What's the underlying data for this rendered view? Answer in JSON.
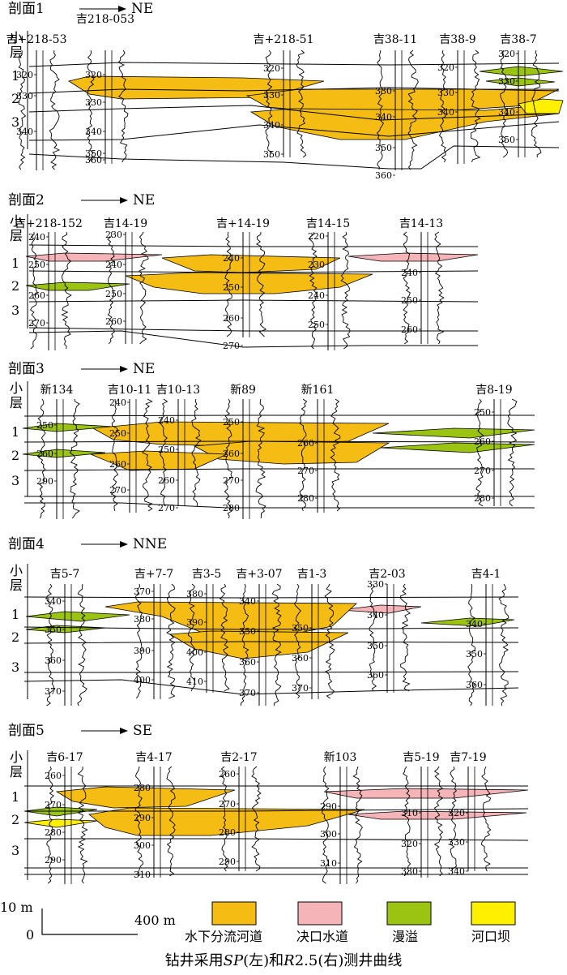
{
  "legend": {
    "scale_vertical": "10 m",
    "scale_zero": "0",
    "scale_horizontal": "400 m",
    "items": [
      {
        "key": "channel",
        "label": "水下分流河道",
        "color": "#F5BC14"
      },
      {
        "key": "crevasse",
        "label": "决口水道",
        "color": "#F4B4B8"
      },
      {
        "key": "overflow",
        "label": "漫溢",
        "color": "#9BC312"
      },
      {
        "key": "bar",
        "label": "河口坝",
        "color": "#FFF000"
      }
    ]
  },
  "caption": {
    "part1": "钻井采用",
    "sp": "SP",
    "part2": "(左)和",
    "r": "R",
    "part3": "2.5(右)测井曲线"
  },
  "layer_header": "小层",
  "sections": [
    {
      "title": "剖面1",
      "direction": "NE",
      "layers": [
        "1",
        "2",
        "3"
      ],
      "wells": [
        {
          "name": "吉+218-53",
          "depths": [
            "320",
            "330",
            "340"
          ]
        },
        {
          "name": "吉218-053",
          "depths": [
            "320",
            "330",
            "340",
            "350",
            "360"
          ]
        },
        {
          "name": "吉+218-51",
          "depths": [
            "320",
            "330",
            "340",
            "350"
          ]
        },
        {
          "name": "吉38-11",
          "depths": [
            "330",
            "340",
            "350",
            "360"
          ]
        },
        {
          "name": "吉38-9",
          "depths": [
            "320",
            "330",
            "340"
          ]
        },
        {
          "name": "吉38-7",
          "depths": [
            "320",
            "330",
            "340",
            "350"
          ]
        }
      ]
    },
    {
      "title": "剖面2",
      "direction": "NE",
      "layers": [
        "1",
        "2",
        "3"
      ],
      "wells": [
        {
          "name": "吉+218-152",
          "depths": [
            "240",
            "250",
            "260",
            "270"
          ]
        },
        {
          "name": "吉14-19",
          "depths": [
            "230",
            "240",
            "250",
            "260"
          ]
        },
        {
          "name": "吉+14-19",
          "depths": [
            "240",
            "250",
            "260",
            "270"
          ]
        },
        {
          "name": "吉14-15",
          "depths": [
            "220",
            "230",
            "240",
            "250"
          ]
        },
        {
          "name": "吉14-13",
          "depths": [
            "240",
            "250",
            "260"
          ]
        }
      ]
    },
    {
      "title": "剖面3",
      "direction": "NE",
      "layers": [
        "1",
        "2",
        "3"
      ],
      "wells": [
        {
          "name": "新134",
          "depths": [
            "250",
            "260",
            "290"
          ]
        },
        {
          "name": "吉10-11",
          "depths": [
            "240",
            "250",
            "260",
            "270"
          ]
        },
        {
          "name": "吉10-13",
          "depths": [
            "240",
            "250",
            "260",
            "270"
          ]
        },
        {
          "name": "新89",
          "depths": [
            "250",
            "260",
            "270",
            "280"
          ]
        },
        {
          "name": "新161",
          "depths": [
            "260",
            "270",
            "280"
          ]
        },
        {
          "name": "吉8-19",
          "depths": [
            "250",
            "260",
            "270",
            "280"
          ]
        }
      ]
    },
    {
      "title": "剖面4",
      "direction": "NNE",
      "layers": [
        "1",
        "2",
        "3"
      ],
      "wells": [
        {
          "name": "吉5-7",
          "depths": [
            "340",
            "350",
            "360",
            "370"
          ]
        },
        {
          "name": "吉+7-7",
          "depths": [
            "370",
            "380",
            "390",
            "400"
          ]
        },
        {
          "name": "吉3-5",
          "depths": [
            "380",
            "390",
            "400",
            "410"
          ]
        },
        {
          "name": "吉+3-07",
          "depths": [
            "340",
            "350",
            "360",
            "370"
          ]
        },
        {
          "name": "吉1-3",
          "depths": [
            "350",
            "360",
            "370"
          ]
        },
        {
          "name": "吉2-03",
          "depths": [
            "330",
            "340",
            "350",
            "360"
          ]
        },
        {
          "name": "吉4-1",
          "depths": [
            "340",
            "350",
            "360"
          ]
        }
      ]
    },
    {
      "title": "剖面5",
      "direction": "SE",
      "layers": [
        "1",
        "2",
        "3"
      ],
      "wells": [
        {
          "name": "吉6-17",
          "depths": [
            "260",
            "270",
            "280",
            "290"
          ]
        },
        {
          "name": "吉4-17",
          "depths": [
            "280",
            "290",
            "300",
            "310"
          ]
        },
        {
          "name": "吉2-17",
          "depths": [
            "260",
            "270",
            "280",
            "290"
          ]
        },
        {
          "name": "新103",
          "depths": [
            "290",
            "300",
            "310"
          ]
        },
        {
          "name": "吉5-19",
          "depths": [
            "310",
            "320",
            "330"
          ]
        },
        {
          "name": "吉7-19",
          "depths": [
            "320",
            "330",
            "340"
          ]
        }
      ]
    }
  ]
}
